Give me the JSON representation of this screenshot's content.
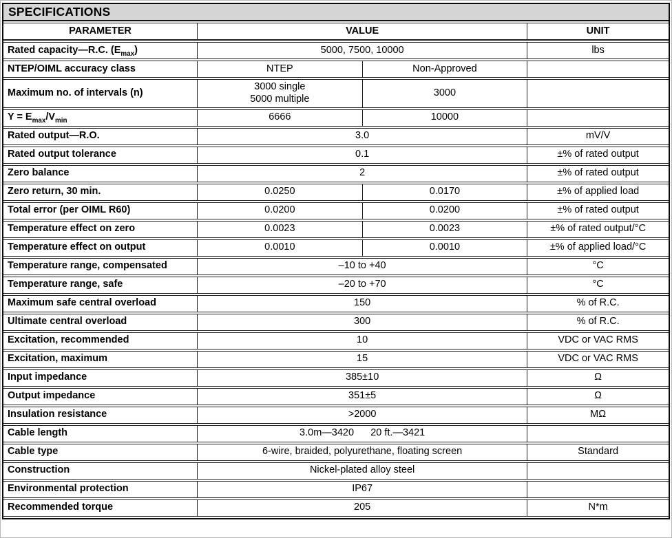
{
  "table": {
    "title": "SPECIFICATIONS",
    "columns": {
      "parameter": "PARAMETER",
      "value": "VALUE",
      "unit": "UNIT"
    },
    "rows": [
      {
        "param": [
          {
            "t": "Rated capacity—R.C. (E"
          },
          {
            "t": "max",
            "sub": true
          },
          {
            "t": ")"
          }
        ],
        "values": [
          "5000, 7500, 10000"
        ],
        "unit": "lbs"
      },
      {
        "param": "NTEP/OIML accuracy class",
        "values": [
          "NTEP",
          "Non-Approved"
        ],
        "unit": ""
      },
      {
        "param": "Maximum no. of intervals (n)",
        "values": [
          "3000 single\n5000 multiple",
          "3000"
        ],
        "unit": ""
      },
      {
        "param": [
          {
            "t": "Y = E"
          },
          {
            "t": "max",
            "sub": true
          },
          {
            "t": "/V"
          },
          {
            "t": "min",
            "sub": true
          }
        ],
        "values": [
          "6666",
          "10000"
        ],
        "unit": ""
      },
      {
        "param": "Rated output—R.O.",
        "values": [
          "3.0"
        ],
        "unit": "mV/V"
      },
      {
        "param": "Rated output tolerance",
        "values": [
          "0.1"
        ],
        "unit": "±% of rated output"
      },
      {
        "param": "Zero balance",
        "values": [
          "2"
        ],
        "unit": "±% of rated output"
      },
      {
        "param": "Zero return, 30 min.",
        "values": [
          "0.0250",
          "0.0170"
        ],
        "unit": "±% of applied load"
      },
      {
        "param": "Total error (per OIML R60)",
        "values": [
          "0.0200",
          "0.0200"
        ],
        "unit": "±% of rated output"
      },
      {
        "param": "Temperature effect on zero",
        "values": [
          "0.0023",
          "0.0023"
        ],
        "unit": "±% of rated output/°C"
      },
      {
        "param": "Temperature effect on output",
        "values": [
          "0.0010",
          "0.0010"
        ],
        "unit": "±% of applied load/°C"
      },
      {
        "param": "Temperature range, compensated",
        "values": [
          "–10 to +40"
        ],
        "unit": "°C"
      },
      {
        "param": "Temperature range, safe",
        "values": [
          "–20 to +70"
        ],
        "unit": "°C"
      },
      {
        "param": "Maximum safe central overload",
        "values": [
          "150"
        ],
        "unit": "% of R.C."
      },
      {
        "param": "Ultimate central overload",
        "values": [
          "300"
        ],
        "unit": "% of R.C."
      },
      {
        "param": "Excitation, recommended",
        "values": [
          "10"
        ],
        "unit": "VDC or VAC RMS"
      },
      {
        "param": "Excitation, maximum",
        "values": [
          "15"
        ],
        "unit": "VDC or VAC RMS"
      },
      {
        "param": "Input impedance",
        "values": [
          "385±10"
        ],
        "unit": "Ω"
      },
      {
        "param": "Output impedance",
        "values": [
          "351±5"
        ],
        "unit": "Ω"
      },
      {
        "param": "Insulation resistance",
        "values": [
          ">2000"
        ],
        "unit": "MΩ"
      },
      {
        "param": "Cable length",
        "values": [
          "3.0m—3420      20 ft.—3421"
        ],
        "unit": ""
      },
      {
        "param": "Cable type",
        "values": [
          "6-wire, braided, polyurethane, floating screen"
        ],
        "unit": "Standard"
      },
      {
        "param": "Construction",
        "values": [
          "Nickel-plated alloy steel"
        ],
        "unit": ""
      },
      {
        "param": "Environmental protection",
        "values": [
          "IP67"
        ],
        "unit": ""
      },
      {
        "param": "Recommended torque",
        "values": [
          "205"
        ],
        "unit": "N*m"
      }
    ]
  }
}
